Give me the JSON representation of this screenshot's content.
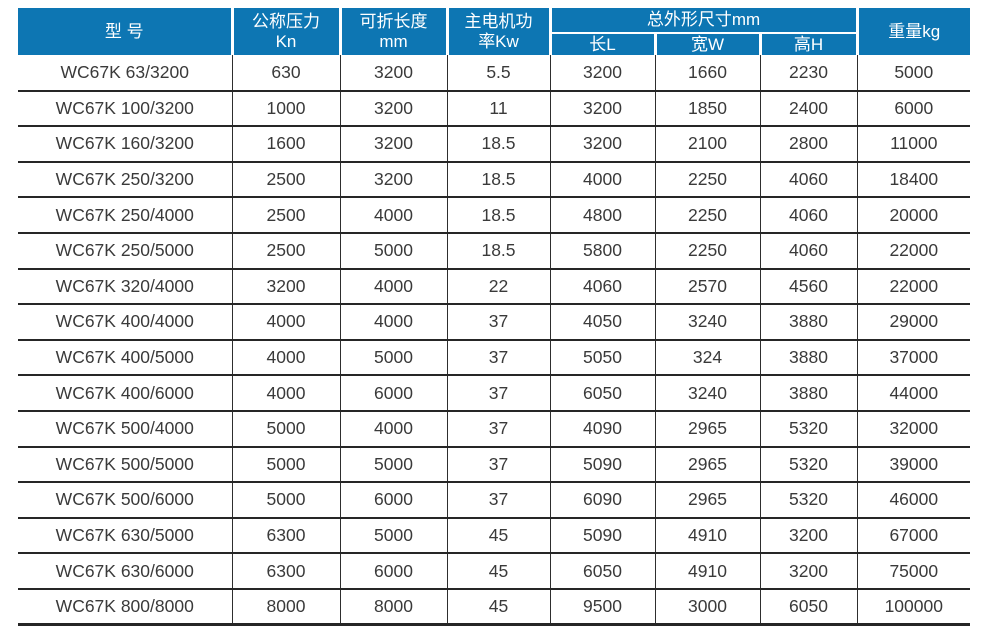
{
  "table": {
    "title_semantic": "WC67K press brake specification table",
    "headers": {
      "model": "型 号",
      "pressure_line1": "公称压力",
      "pressure_line2": "Kn",
      "fold_length_line1": "可折长度",
      "fold_length_line2": "mm",
      "motor_power_line1": "主电机功",
      "motor_power_line2": "率Kw",
      "dims_group": "总外形尺寸mm",
      "dim_length": "长L",
      "dim_width": "宽W",
      "dim_height": "高H",
      "weight": "重量kg"
    },
    "rows": [
      [
        "WC67K 63/3200",
        "630",
        "3200",
        "5.5",
        "3200",
        "1660",
        "2230",
        "5000"
      ],
      [
        "WC67K 100/3200",
        "1000",
        "3200",
        "11",
        "3200",
        "1850",
        "2400",
        "6000"
      ],
      [
        "WC67K 160/3200",
        "1600",
        "3200",
        "18.5",
        "3200",
        "2100",
        "2800",
        "11000"
      ],
      [
        "WC67K 250/3200",
        "2500",
        "3200",
        "18.5",
        "4000",
        "2250",
        "4060",
        "18400"
      ],
      [
        "WC67K 250/4000",
        "2500",
        "4000",
        "18.5",
        "4800",
        "2250",
        "4060",
        "20000"
      ],
      [
        "WC67K 250/5000",
        "2500",
        "5000",
        "18.5",
        "5800",
        "2250",
        "4060",
        "22000"
      ],
      [
        "WC67K 320/4000",
        "3200",
        "4000",
        "22",
        "4060",
        "2570",
        "4560",
        "22000"
      ],
      [
        "WC67K 400/4000",
        "4000",
        "4000",
        "37",
        "4050",
        "3240",
        "3880",
        "29000"
      ],
      [
        "WC67K 400/5000",
        "4000",
        "5000",
        "37",
        "5050",
        "324",
        "3880",
        "37000"
      ],
      [
        "WC67K 400/6000",
        "4000",
        "6000",
        "37",
        "6050",
        "3240",
        "3880",
        "44000"
      ],
      [
        "WC67K 500/4000",
        "5000",
        "4000",
        "37",
        "4090",
        "2965",
        "5320",
        "32000"
      ],
      [
        "WC67K 500/5000",
        "5000",
        "5000",
        "37",
        "5090",
        "2965",
        "5320",
        "39000"
      ],
      [
        "WC67K 500/6000",
        "5000",
        "6000",
        "37",
        "6090",
        "2965",
        "5320",
        "46000"
      ],
      [
        "WC67K 630/5000",
        "6300",
        "5000",
        "45",
        "5090",
        "4910",
        "3200",
        "67000"
      ],
      [
        "WC67K 630/6000",
        "6300",
        "6000",
        "45",
        "6050",
        "4910",
        "3200",
        "75000"
      ],
      [
        "WC67K 800/8000",
        "8000",
        "8000",
        "45",
        "9500",
        "3000",
        "6050",
        "100000"
      ]
    ]
  },
  "colors": {
    "header_bg": "#0d76b3",
    "header_text": "#ffffff",
    "row_line": "#262626",
    "col_line": "#2e2e2e",
    "cell_text": "#3a3a3a"
  }
}
